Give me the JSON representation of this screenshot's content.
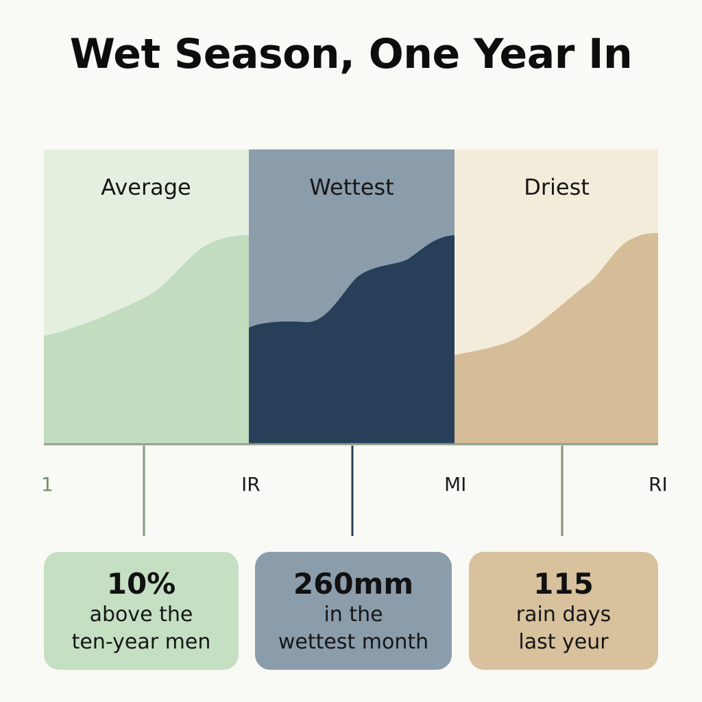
{
  "title": "Wet Season, One Year In",
  "chart_data": {
    "type": "area",
    "title": "Wet Season, One Year In",
    "panels": [
      {
        "label": "Average",
        "level": 0.6
      },
      {
        "label": "Wettest",
        "level": 0.7
      },
      {
        "label": "Driest",
        "level": 0.55
      }
    ],
    "axis_ticks": [
      "1",
      "IR",
      "MI",
      "RI"
    ]
  },
  "colors": {
    "average_bg": "#e4efe0",
    "average_fill": "#c2dcc0",
    "wettest_bg": "#8b9cab",
    "wettest_fill": "#283f5a",
    "driest_bg": "#f4ecda",
    "driest_fill": "#d5bd97",
    "axis": "#8ea08c"
  },
  "cards": [
    {
      "value": "10%",
      "desc": "above the\nten-year men",
      "color": "#c5dfc3"
    },
    {
      "value": "260mm",
      "desc": "in the\nwettest month",
      "color": "#8b9cab"
    },
    {
      "value": "115",
      "desc": "rain days\nlast yeur",
      "color": "#d8c19d"
    }
  ]
}
